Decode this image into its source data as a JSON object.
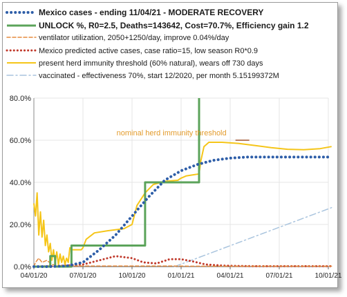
{
  "chart_data": {
    "type": "line",
    "legend_placement": "top",
    "grid": true,
    "x_tick_labels": [
      "04/01/20",
      "07/01/20",
      "10/01/20",
      "01/01/21",
      "04/01/21",
      "07/01/21",
      "10/01/21"
    ],
    "x_tick_months": [
      0,
      3,
      6,
      9,
      12,
      15,
      18
    ],
    "xlim_months": [
      0,
      18
    ],
    "y_tick_labels": [
      "0.0%",
      "20.0%",
      "40.0%",
      "60.0%",
      "80.0%"
    ],
    "ylim": [
      0,
      80
    ],
    "annotation": {
      "text": "nominal herd immunity threshold",
      "at": [
        13,
        60
      ],
      "color": "#e39b2b"
    },
    "series": [
      {
        "name": "Mexico cases - ending 11/04/21 - MODERATE RECOVERY",
        "style": "dotted",
        "color": "#2e5ea8",
        "bold": true,
        "x": [
          0,
          1,
          2,
          3,
          4,
          5,
          6,
          7,
          8,
          9,
          10,
          11,
          12,
          13,
          14,
          15,
          16,
          17,
          18.2
        ],
        "y": [
          0,
          0,
          0.3,
          2,
          8,
          15,
          24,
          33,
          41,
          45.5,
          48.5,
          50.5,
          51.5,
          52,
          52,
          52,
          52,
          52,
          52
        ]
      },
      {
        "name": "UNLOCK %, R0=2.5,  Deaths=143642, Cost=70.7%, Efficiency gain 1.2",
        "style": "solid",
        "color": "#5ba35a",
        "bold": true,
        "x": [
          0.0,
          1.0,
          1.0,
          1.3,
          1.3,
          2.3,
          2.3,
          6.0,
          6.0,
          6.8,
          6.8,
          8.8,
          8.8,
          10.1,
          10.1
        ],
        "y": [
          0,
          0,
          5,
          5,
          0,
          0,
          10,
          10,
          10,
          10,
          40,
          40,
          40,
          40,
          80
        ]
      },
      {
        "name": "ventilator utilization, 2050+1250/day, improve 0.04%/day",
        "style": "dashed",
        "color": "#e68a3c",
        "bold": false,
        "x": [
          0,
          0.1,
          0.3,
          0.5,
          0.8,
          1.1,
          1.4,
          2.0,
          4.0,
          6.0,
          8.0,
          10.0,
          12.0,
          14.0,
          16.0,
          18.2
        ],
        "y": [
          0,
          2,
          4,
          2,
          3,
          1,
          0.5,
          0.3,
          0.3,
          0.3,
          0.3,
          0.2,
          0.2,
          0.2,
          0.2,
          0.2
        ]
      },
      {
        "name": "Mexico predicted active cases, case ratio=15, low season R0*0.9",
        "style": "dotted",
        "color": "#c0392b",
        "bold": false,
        "x": [
          0,
          1.5,
          3,
          4,
          5,
          6,
          6.7,
          7.5,
          8.3,
          9.0,
          9.7,
          10.5,
          11.5,
          12.5,
          13.5,
          15,
          16.5,
          18.2
        ],
        "y": [
          0,
          0.3,
          1.0,
          3.0,
          5.0,
          4.0,
          2.0,
          1.5,
          3.5,
          3.5,
          2.5,
          1.0,
          0.5,
          0.3,
          0.2,
          0.2,
          0.2,
          0.2
        ]
      },
      {
        "name": "present herd immunity threshold (60% natural), wears off 730 days",
        "style": "solid",
        "color": "#f5c518",
        "bold": false,
        "x": [
          0,
          0.1,
          0.2,
          0.3,
          0.4,
          0.5,
          0.6,
          0.7,
          0.8,
          0.9,
          1.0,
          1.1,
          1.2,
          1.3,
          1.4,
          1.5,
          1.6,
          1.7,
          1.8,
          1.9,
          2.0,
          2.1,
          2.2,
          2.3,
          2.35,
          2.9,
          3.0,
          3.2,
          3.7,
          4.5,
          5.5,
          6.0,
          6.3,
          6.8,
          7.3,
          8.0,
          8.8,
          8.9,
          9.0,
          9.3,
          9.7,
          10.1,
          10.2,
          10.4,
          10.7,
          11.5,
          12.5,
          13.5,
          14.5,
          15.5,
          16.5,
          17.5,
          18.2
        ],
        "y": [
          30,
          24,
          35,
          15,
          26,
          14,
          22,
          10,
          15,
          7,
          11,
          3,
          8,
          2,
          7,
          1,
          6,
          2,
          5,
          1,
          4,
          2,
          9,
          8,
          8,
          8,
          9,
          13,
          16,
          17,
          18,
          20,
          29,
          35,
          39,
          40.5,
          41,
          41.5,
          42,
          43,
          43.5,
          44,
          50,
          57,
          59,
          59,
          58.5,
          57.5,
          56.5,
          55.7,
          55.5,
          56,
          57
        ]
      },
      {
        "name": "vaccinated - effectiveness 70%, start 12/2020, per month 5.15199372M",
        "style": "dashdot",
        "color": "#a9c4de",
        "bold": false,
        "x": [
          8.6,
          18.2
        ],
        "y": [
          0,
          28
        ]
      }
    ]
  }
}
